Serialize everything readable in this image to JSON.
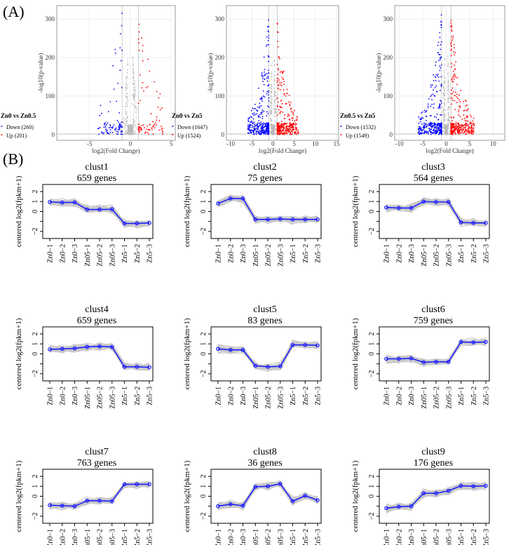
{
  "panel_labels": [
    "(A)",
    "(B)"
  ],
  "colors": {
    "down": "#0000ff",
    "up": "#ff0000",
    "ns": "#bbbbbb",
    "line": "#1f1fff",
    "grey": "#c8c8c8"
  },
  "chart_data": [
    {
      "type": "scatter",
      "title": "Zn0  vs  Zn0.5",
      "xlabel": "log2(Fold Change)",
      "ylabel": "-log10(p-value)",
      "xlim": [
        -9,
        5.5
      ],
      "ylim": [
        -15,
        335
      ],
      "xticks": [
        -5,
        0,
        5
      ],
      "yticks": [
        0,
        100,
        200,
        300
      ],
      "legend": [
        "Down (260)",
        "Up (201)"
      ],
      "down": 260,
      "up": 201
    },
    {
      "type": "scatter",
      "title": "Zn0  vs  Zn5",
      "xlabel": "log2(Fold Change)",
      "ylabel": "-log10(p-value)",
      "xlim": [
        -11,
        15.5
      ],
      "ylim": [
        -15,
        335
      ],
      "xticks": [
        -10,
        -5,
        0,
        5,
        10,
        15
      ],
      "yticks": [
        0,
        100,
        200,
        300
      ],
      "legend": [
        "Down (1647)",
        "Up (1524)"
      ],
      "down": 1647,
      "up": 1524
    },
    {
      "type": "scatter",
      "title": "Zn0.5  vs  Zn5",
      "xlabel": "log2(Fold Change)",
      "ylabel": "-log10(p-value)",
      "xlim": [
        -11,
        12.5
      ],
      "ylim": [
        -15,
        335
      ],
      "xticks": [
        -10,
        -5,
        0,
        5,
        10
      ],
      "yticks": [
        0,
        100,
        200,
        300
      ],
      "legend": [
        "Down (1532)",
        "Up (1549)"
      ],
      "down": 1532,
      "up": 1549
    },
    {
      "type": "line",
      "ylabel": "centered log2(fpkm+1)",
      "categories": [
        "Zn0−1",
        "Zn0−2",
        "Zn0−3",
        "Zn05−1",
        "Zn05−2",
        "Zn05−3",
        "Zn5−1",
        "Zn5−2",
        "Zn5−3"
      ],
      "yticks": [
        -2,
        -1,
        0,
        1,
        2
      ],
      "ytick_labels": [
        "−2",
        "",
        "0",
        "1",
        "2"
      ],
      "clusters": [
        {
          "title": "clust1",
          "subtitle": "659 genes",
          "values": [
            0.95,
            0.9,
            0.92,
            0.2,
            0.2,
            0.22,
            -1.2,
            -1.2,
            -1.15
          ]
        },
        {
          "title": "clust2",
          "subtitle": "75 genes",
          "values": [
            0.8,
            1.3,
            1.3,
            -0.8,
            -0.8,
            -0.75,
            -0.8,
            -0.8,
            -0.8
          ]
        },
        {
          "title": "clust3",
          "subtitle": "564 genes",
          "values": [
            0.4,
            0.35,
            0.35,
            1.0,
            0.95,
            0.95,
            -1.1,
            -1.15,
            -1.15
          ]
        },
        {
          "title": "clust4",
          "subtitle": "659 genes",
          "values": [
            0.45,
            0.5,
            0.55,
            0.7,
            0.75,
            0.7,
            -1.3,
            -1.3,
            -1.35
          ]
        },
        {
          "title": "clust5",
          "subtitle": "83 genes",
          "values": [
            0.5,
            0.4,
            0.4,
            -1.2,
            -1.3,
            -1.25,
            0.9,
            0.9,
            0.85
          ]
        },
        {
          "title": "clust6",
          "subtitle": "759 genes",
          "values": [
            -0.5,
            -0.5,
            -0.45,
            -0.85,
            -0.8,
            -0.8,
            1.2,
            1.15,
            1.2
          ]
        },
        {
          "title": "clust7",
          "subtitle": "763 genes",
          "values": [
            -0.9,
            -0.95,
            -1.0,
            -0.45,
            -0.45,
            -0.5,
            1.2,
            1.2,
            1.2
          ]
        },
        {
          "title": "clust8",
          "subtitle": "36 genes",
          "values": [
            -1.0,
            -0.8,
            -0.95,
            0.95,
            1.0,
            1.25,
            -0.5,
            0.05,
            -0.4
          ]
        },
        {
          "title": "clust9",
          "subtitle": "176 genes",
          "values": [
            -1.2,
            -1.05,
            -1.0,
            0.3,
            0.3,
            0.55,
            1.05,
            1.0,
            1.05
          ]
        }
      ]
    }
  ]
}
